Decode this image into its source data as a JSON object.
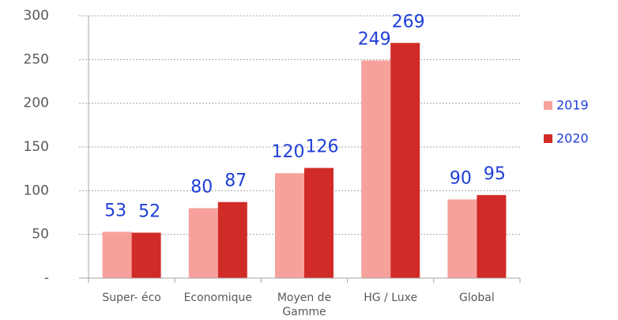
{
  "chart_data": {
    "type": "bar",
    "categories": [
      "Super- éco",
      "Economique",
      "Moyen de Gamme",
      "HG / Luxe",
      "Global"
    ],
    "series": [
      {
        "name": "2019",
        "color": "#f7a19d",
        "values": [
          53,
          80,
          120,
          249,
          90
        ]
      },
      {
        "name": "2020",
        "color": "#d12b27",
        "values": [
          52,
          87,
          126,
          269,
          95
        ]
      }
    ],
    "ylim": [
      0,
      300
    ],
    "yticks": [
      {
        "value": 0,
        "label": "-"
      },
      50,
      100,
      150,
      200,
      250,
      300
    ],
    "grid": true,
    "legend": "right"
  }
}
